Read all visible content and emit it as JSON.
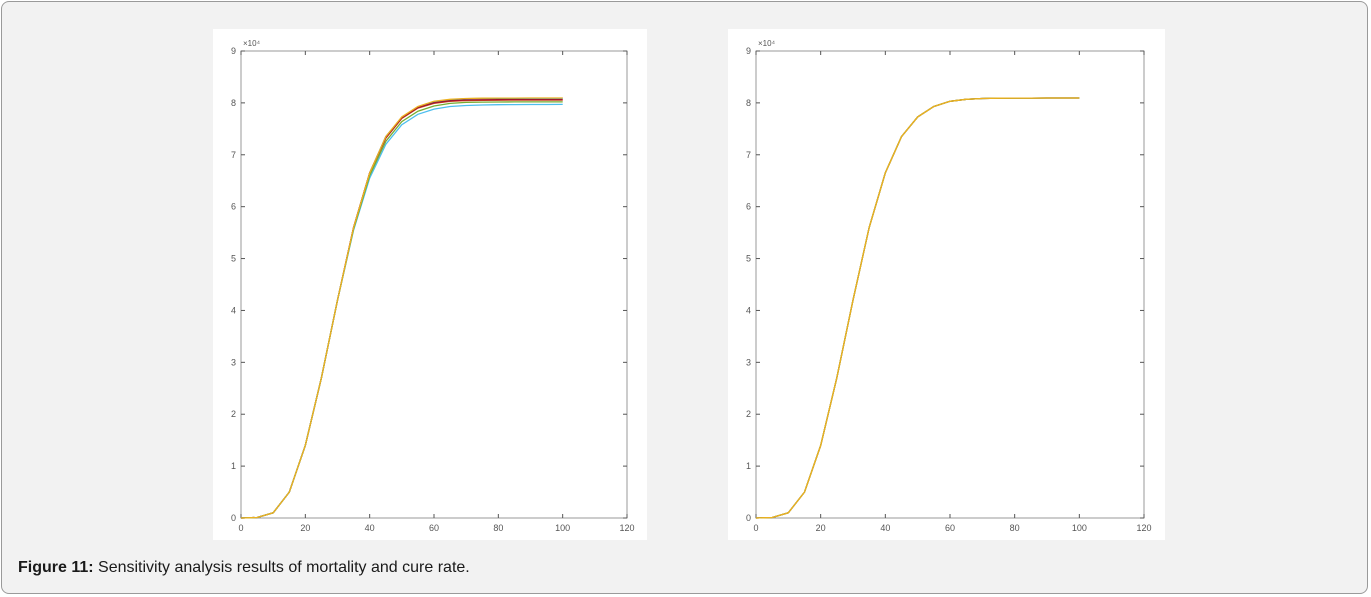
{
  "figure": {
    "caption_label": "Figure 11:",
    "caption_text": " Sensitivity analysis results of mortality and cure rate."
  },
  "chart_data": [
    {
      "type": "line",
      "title": "",
      "xlabel": "",
      "ylabel": "",
      "xlim": [
        0,
        120
      ],
      "ylim": [
        0,
        90000
      ],
      "y_multiplier_label": "×10⁴",
      "xticks": [
        0,
        20,
        40,
        60,
        80,
        100,
        120
      ],
      "yticks": [
        0,
        1,
        2,
        3,
        4,
        5,
        6,
        7,
        8,
        9
      ],
      "grid": false,
      "x": [
        0,
        5,
        10,
        15,
        20,
        25,
        30,
        35,
        40,
        45,
        50,
        55,
        60,
        65,
        70,
        75,
        80,
        85,
        90,
        95,
        100
      ],
      "series": [
        {
          "color": "#0072bd",
          "values": [
            0,
            100,
            1000,
            5000,
            14000,
            27000,
            42000,
            56000,
            66500,
            73500,
            77200,
            79200,
            80200,
            80600,
            80800,
            80850,
            80880,
            80890,
            80895,
            80898,
            80900
          ]
        },
        {
          "color": "#d95319",
          "values": [
            0,
            100,
            1000,
            5000,
            14000,
            27000,
            42000,
            56000,
            66500,
            73200,
            77000,
            79000,
            79900,
            80300,
            80450,
            80500,
            80520,
            80530,
            80535,
            80538,
            80540
          ]
        },
        {
          "color": "#a2142f",
          "values": [
            0,
            100,
            1000,
            5000,
            14000,
            27000,
            42000,
            56000,
            66500,
            73300,
            77100,
            79100,
            80000,
            80400,
            80550,
            80600,
            80620,
            80630,
            80635,
            80638,
            80640
          ]
        },
        {
          "color": "#4dbeee",
          "values": [
            0,
            100,
            1000,
            5000,
            14000,
            27000,
            42000,
            55500,
            65500,
            72000,
            75800,
            77800,
            78800,
            79300,
            79500,
            79600,
            79650,
            79670,
            79680,
            79690,
            79700
          ]
        },
        {
          "color": "#77ac30",
          "values": [
            0,
            100,
            1000,
            5000,
            14000,
            27000,
            42000,
            55700,
            66000,
            72600,
            76400,
            78400,
            79400,
            79900,
            80100,
            80150,
            80180,
            80190,
            80195,
            80198,
            80200
          ]
        },
        {
          "color": "#edb120",
          "values": [
            0,
            100,
            1000,
            5000,
            14000,
            27000,
            42000,
            56000,
            66500,
            73500,
            77300,
            79300,
            80300,
            80700,
            80850,
            80900,
            80920,
            80930,
            80935,
            80938,
            80940
          ]
        }
      ]
    },
    {
      "type": "line",
      "title": "",
      "xlabel": "",
      "ylabel": "",
      "xlim": [
        0,
        120
      ],
      "ylim": [
        0,
        90000
      ],
      "y_multiplier_label": "×10⁴",
      "xticks": [
        0,
        20,
        40,
        60,
        80,
        100,
        120
      ],
      "yticks": [
        0,
        1,
        2,
        3,
        4,
        5,
        6,
        7,
        8,
        9
      ],
      "grid": false,
      "x": [
        0,
        5,
        10,
        15,
        20,
        25,
        30,
        35,
        40,
        45,
        50,
        55,
        60,
        65,
        70,
        75,
        80,
        85,
        90,
        95,
        100
      ],
      "series": [
        {
          "color": "#0072bd",
          "values": [
            0,
            100,
            1000,
            5000,
            14000,
            27000,
            42000,
            56000,
            66500,
            73500,
            77300,
            79300,
            80300,
            80700,
            80850,
            80900,
            80920,
            80930,
            80935,
            80938,
            80940
          ]
        },
        {
          "color": "#d95319",
          "values": [
            0,
            100,
            1000,
            5000,
            14000,
            27000,
            42000,
            56000,
            66500,
            73500,
            77300,
            79300,
            80300,
            80700,
            80850,
            80900,
            80920,
            80930,
            80935,
            80938,
            80940
          ]
        },
        {
          "color": "#77ac30",
          "values": [
            0,
            100,
            1000,
            5000,
            14000,
            27000,
            42000,
            56000,
            66500,
            73500,
            77300,
            79300,
            80300,
            80700,
            80850,
            80900,
            80920,
            80930,
            80935,
            80938,
            80940
          ]
        },
        {
          "color": "#edb120",
          "values": [
            0,
            100,
            1000,
            5000,
            14000,
            27000,
            42000,
            56000,
            66500,
            73500,
            77300,
            79300,
            80300,
            80700,
            80850,
            80900,
            80920,
            80930,
            80935,
            80938,
            80940
          ]
        }
      ]
    }
  ]
}
